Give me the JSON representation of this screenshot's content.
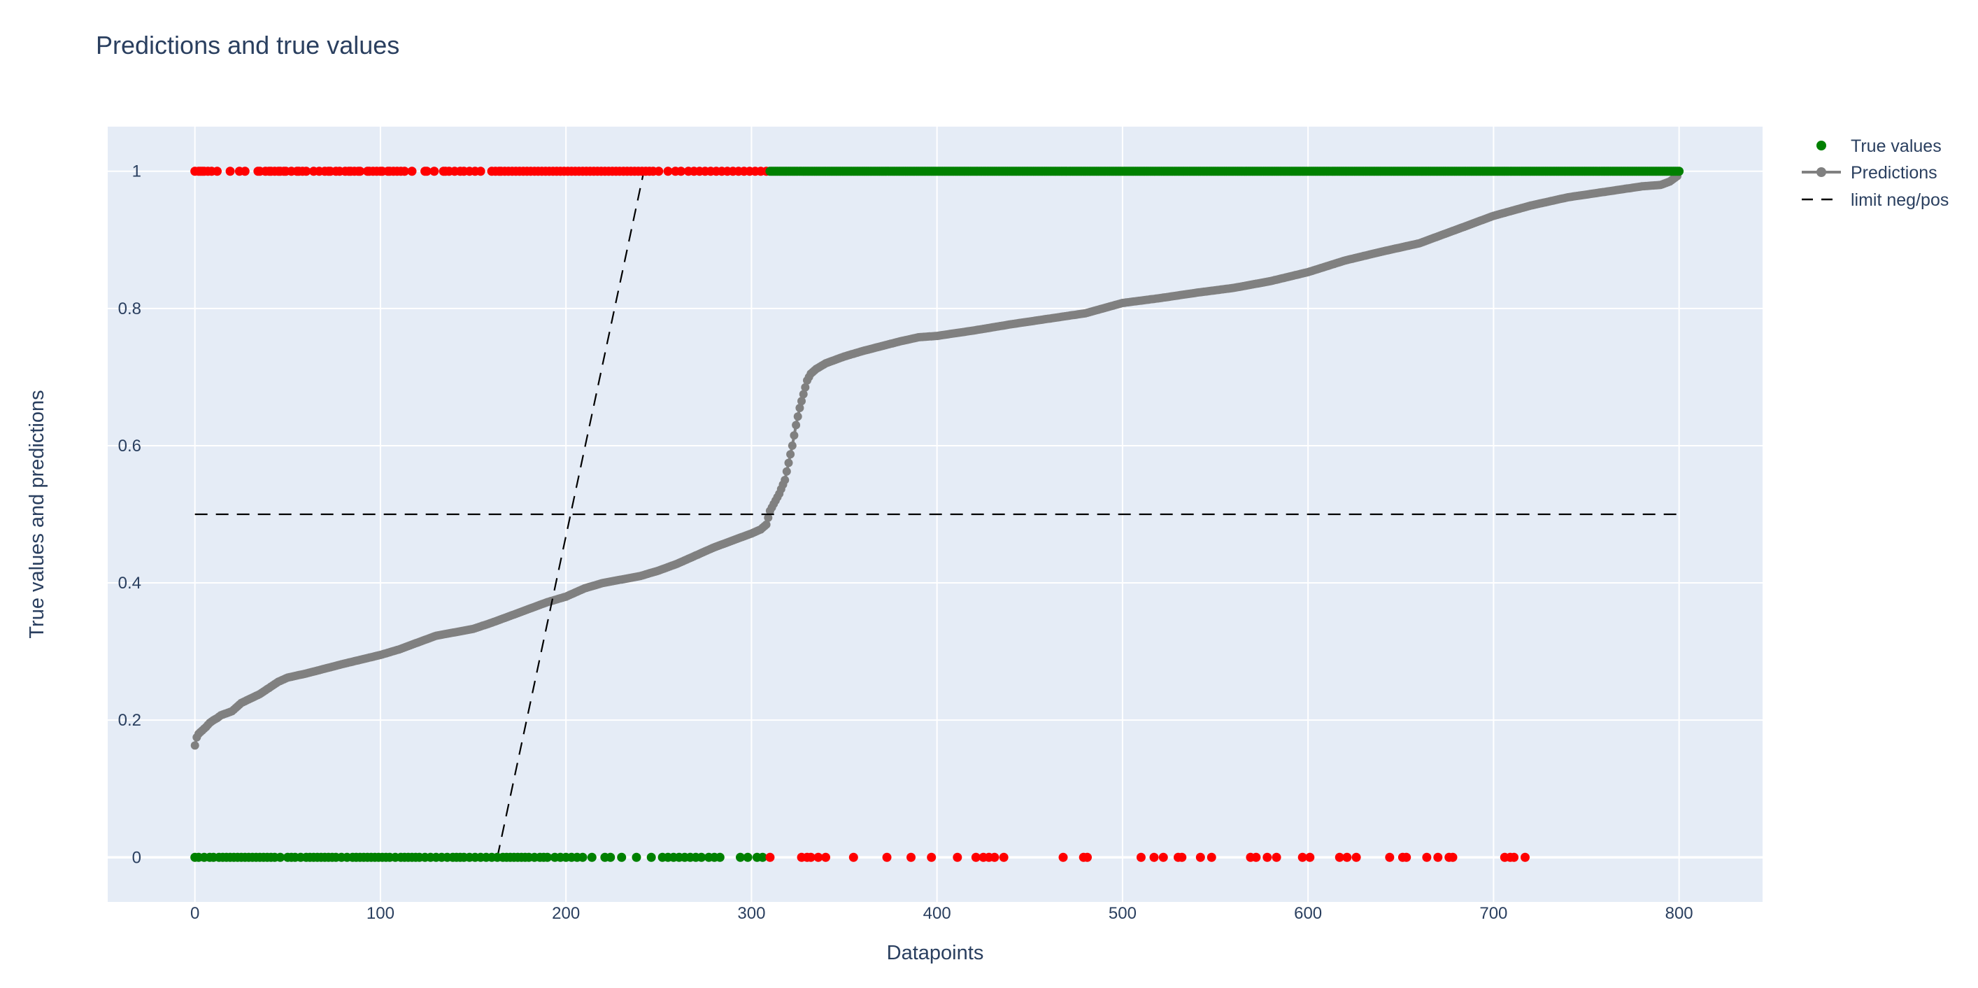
{
  "chart_data": {
    "type": "scatter",
    "title": "Predictions and true values",
    "xlabel": "Datapoints",
    "ylabel": "True values and predictions",
    "xlim": [
      -47,
      845
    ],
    "ylim": [
      -0.065,
      1.065
    ],
    "x_ticks": [
      0,
      100,
      200,
      300,
      400,
      500,
      600,
      700,
      800
    ],
    "y_ticks": [
      0,
      0.2,
      0.4,
      0.6,
      0.8,
      1
    ],
    "x_tick_labels": [
      "0",
      "100",
      "200",
      "300",
      "400",
      "500",
      "600",
      "700",
      "800"
    ],
    "y_tick_labels": [
      "0",
      "0.2",
      "0.4",
      "0.6",
      "0.8",
      "1"
    ],
    "grid": true,
    "legend_position": "top-right",
    "colors": {
      "plot_bg": "#e5ecf6",
      "grid": "#ffffff",
      "negative": "#ff0000",
      "positive": "#008000",
      "prediction": "#808080",
      "limit": "#000000"
    },
    "series": [
      {
        "name": "True values",
        "mode": "markers",
        "note_color_rule": "red when true value disagrees with predicted class, green otherwise",
        "red_at_1": [
          0,
          2,
          3,
          4,
          5,
          7,
          9,
          12,
          19,
          24,
          27,
          34,
          35,
          38,
          40,
          41,
          43,
          45,
          46,
          48,
          49,
          52,
          55,
          56,
          58,
          60,
          64,
          67,
          70,
          72,
          73,
          76,
          78,
          81,
          83,
          84,
          86,
          88,
          89,
          93,
          94,
          96,
          98,
          100,
          101,
          104,
          105,
          107,
          109,
          111,
          113,
          117,
          124,
          125,
          129,
          134,
          135,
          137,
          140,
          143,
          145,
          148,
          151,
          154,
          160,
          162,
          164,
          165,
          167,
          169,
          171,
          173,
          175,
          177,
          179,
          181,
          183,
          185,
          187,
          189,
          191,
          193,
          195,
          197,
          199,
          201,
          203,
          205,
          207,
          209,
          211,
          213,
          215,
          217,
          219,
          221,
          223,
          225,
          227,
          229,
          231,
          233,
          235,
          237,
          239,
          241,
          243,
          245,
          247,
          250,
          255,
          259,
          262,
          266,
          269,
          272,
          275,
          278,
          281,
          284,
          287,
          290,
          293,
          296,
          299,
          302,
          305,
          308
        ],
        "green_at_1_range": [
          310,
          800
        ],
        "green_at_0": [
          0,
          2,
          5,
          8,
          10,
          13,
          15,
          17,
          19,
          21,
          23,
          25,
          27,
          29,
          31,
          33,
          35,
          37,
          39,
          41,
          43,
          46,
          50,
          52,
          54,
          57,
          60,
          62,
          64,
          66,
          68,
          70,
          72,
          74,
          76,
          79,
          82,
          85,
          87,
          89,
          91,
          93,
          95,
          97,
          99,
          101,
          103,
          105,
          108,
          111,
          113,
          115,
          117,
          119,
          121,
          124,
          127,
          130,
          133,
          136,
          139,
          141,
          143,
          145,
          148,
          151,
          154,
          157,
          160,
          163,
          166,
          168,
          170,
          172,
          174,
          176,
          178,
          180,
          183,
          186,
          188,
          190,
          194,
          197,
          200,
          203,
          206,
          209,
          214,
          221,
          224,
          230,
          238,
          246,
          252,
          255,
          258,
          261,
          264,
          267,
          270,
          273,
          277,
          280,
          283,
          294,
          298,
          303,
          306
        ],
        "red_at_0": [
          310,
          327,
          330,
          332,
          336,
          340,
          355,
          373,
          386,
          397,
          411,
          421,
          425,
          428,
          431,
          436,
          468,
          479,
          481,
          510,
          517,
          522,
          530,
          532,
          542,
          548,
          569,
          572,
          578,
          583,
          597,
          601,
          617,
          621,
          626,
          644,
          651,
          653,
          664,
          670,
          676,
          678,
          706,
          709,
          711,
          717
        ]
      },
      {
        "name": "Predictions",
        "mode": "lines+markers",
        "x_range": [
          0,
          799
        ],
        "curve_x": [
          0,
          1,
          2,
          4,
          6,
          8,
          10,
          12,
          14,
          20,
          25,
          35,
          45,
          50,
          60,
          70,
          80,
          100,
          110,
          120,
          130,
          140,
          150,
          160,
          170,
          180,
          190,
          200,
          210,
          220,
          230,
          240,
          250,
          260,
          270,
          280,
          290,
          300,
          305,
          308,
          310,
          312,
          315,
          318,
          320,
          322,
          324,
          326,
          328,
          330,
          332,
          335,
          340,
          350,
          360,
          370,
          380,
          390,
          400,
          420,
          440,
          460,
          480,
          500,
          520,
          540,
          560,
          580,
          600,
          620,
          640,
          660,
          680,
          700,
          720,
          740,
          760,
          780,
          790,
          795,
          799
        ],
        "curve_y": [
          0.163,
          0.175,
          0.18,
          0.185,
          0.19,
          0.196,
          0.2,
          0.203,
          0.207,
          0.213,
          0.225,
          0.238,
          0.256,
          0.262,
          0.268,
          0.275,
          0.282,
          0.295,
          0.303,
          0.313,
          0.323,
          0.328,
          0.333,
          0.342,
          0.352,
          0.362,
          0.372,
          0.38,
          0.392,
          0.4,
          0.405,
          0.41,
          0.418,
          0.428,
          0.44,
          0.452,
          0.462,
          0.472,
          0.478,
          0.485,
          0.505,
          0.515,
          0.53,
          0.55,
          0.575,
          0.6,
          0.63,
          0.655,
          0.675,
          0.695,
          0.705,
          0.712,
          0.72,
          0.73,
          0.738,
          0.745,
          0.752,
          0.758,
          0.76,
          0.768,
          0.777,
          0.785,
          0.793,
          0.808,
          0.815,
          0.823,
          0.83,
          0.84,
          0.853,
          0.87,
          0.883,
          0.895,
          0.915,
          0.935,
          0.95,
          0.962,
          0.97,
          0.978,
          0.98,
          0.985,
          0.993
        ]
      },
      {
        "name": "limit neg/pos",
        "mode": "lines",
        "dash": "dash",
        "segments": [
          {
            "x": [
              0,
              799
            ],
            "y": [
              0.5,
              0.5
            ]
          },
          {
            "x": [
              163,
              242
            ],
            "y": [
              0,
              1
            ]
          }
        ]
      }
    ]
  }
}
